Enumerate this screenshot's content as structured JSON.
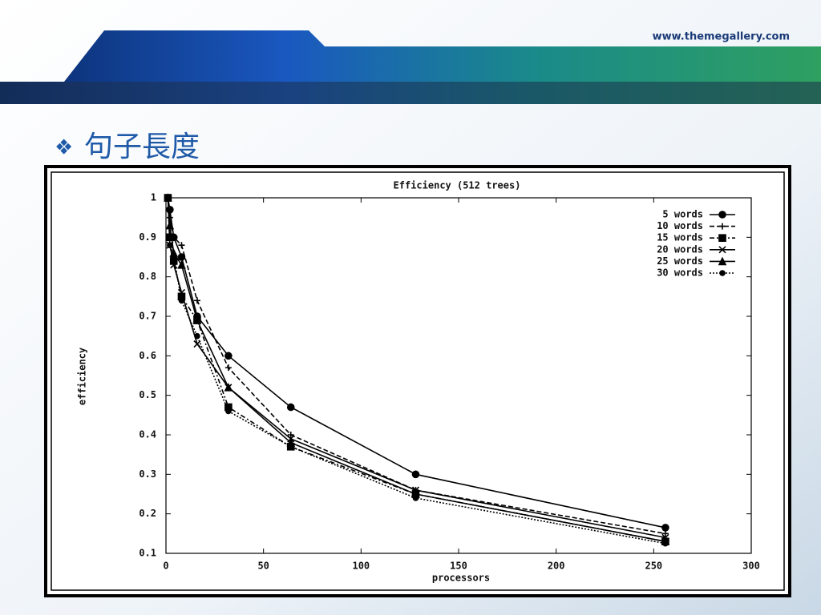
{
  "header": {
    "url": "www.themegallery.com",
    "heading": "句子長度"
  },
  "chart_data": {
    "type": "line",
    "title": "Efficiency (512 trees)",
    "x_label": "processors",
    "y_label": "efficiency",
    "x": [
      1,
      2,
      4,
      8,
      16,
      32,
      64,
      128,
      256
    ],
    "series": [
      {
        "name": "5 words",
        "color": "#000000",
        "marker": "circle",
        "line_style": "solid",
        "values": [
          1,
          0.97,
          0.9,
          0.85,
          0.7,
          0.6,
          0.47,
          0.3,
          0.165
        ]
      },
      {
        "name": "10 words",
        "color": "#000000",
        "marker": "plus",
        "line_style": "dashed",
        "values": [
          1,
          0.95,
          0.9,
          0.88,
          0.74,
          0.57,
          0.4,
          0.26,
          0.15
        ]
      },
      {
        "name": "15 words",
        "color": "#000000",
        "marker": "square",
        "line_style": "dashdot",
        "values": [
          1,
          0.9,
          0.84,
          0.75,
          0.69,
          0.47,
          0.37,
          0.25,
          0.13
        ]
      },
      {
        "name": "20 words",
        "color": "#000000",
        "marker": "x",
        "line_style": "solid",
        "values": [
          1,
          0.88,
          0.83,
          0.76,
          0.63,
          0.52,
          0.39,
          0.26,
          0.14
        ]
      },
      {
        "name": "25 words",
        "color": "#000000",
        "marker": "triangle",
        "line_style": "solid",
        "values": [
          1,
          0.93,
          0.86,
          0.83,
          0.69,
          0.52,
          0.38,
          0.25,
          0.13
        ]
      },
      {
        "name": "30 words",
        "color": "#000000",
        "marker": "dot",
        "line_style": "dotted",
        "values": [
          1,
          0.88,
          0.85,
          0.74,
          0.65,
          0.46,
          0.37,
          0.24,
          0.125
        ]
      }
    ],
    "xlim": [
      0,
      300
    ],
    "xticks": [
      0,
      50,
      100,
      150,
      200,
      250,
      300
    ],
    "ylim": [
      0.1,
      1
    ],
    "yticks": [
      0.1,
      0.2,
      0.3,
      0.4,
      0.5,
      0.6,
      0.7,
      0.8,
      0.9,
      1
    ],
    "legend": "upper right",
    "grid": false
  }
}
